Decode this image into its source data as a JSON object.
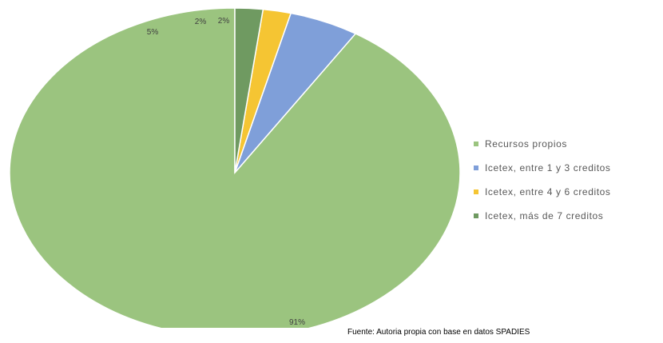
{
  "chart_data": {
    "type": "pie",
    "title": "",
    "slices": [
      {
        "name": "Recursos propios",
        "value": 91,
        "label": "91%",
        "color": "#9bc47f"
      },
      {
        "name": "Icetex, entre 1 y 3 creditos",
        "value": 5,
        "label": "5%",
        "color": "#7f9fd9"
      },
      {
        "name": "Icetex, entre 4 y 6 creditos",
        "value": 2,
        "label": "2%",
        "color": "#f5c533"
      },
      {
        "name": "Icetex, más de 7 creditos",
        "value": 2,
        "label": "2%",
        "color": "#6f9a61"
      }
    ],
    "legend_position": "right",
    "start": "top",
    "direction": "counterclockwise"
  },
  "source_note": "Fuente: Autoria propia con base en datos SPADIES"
}
